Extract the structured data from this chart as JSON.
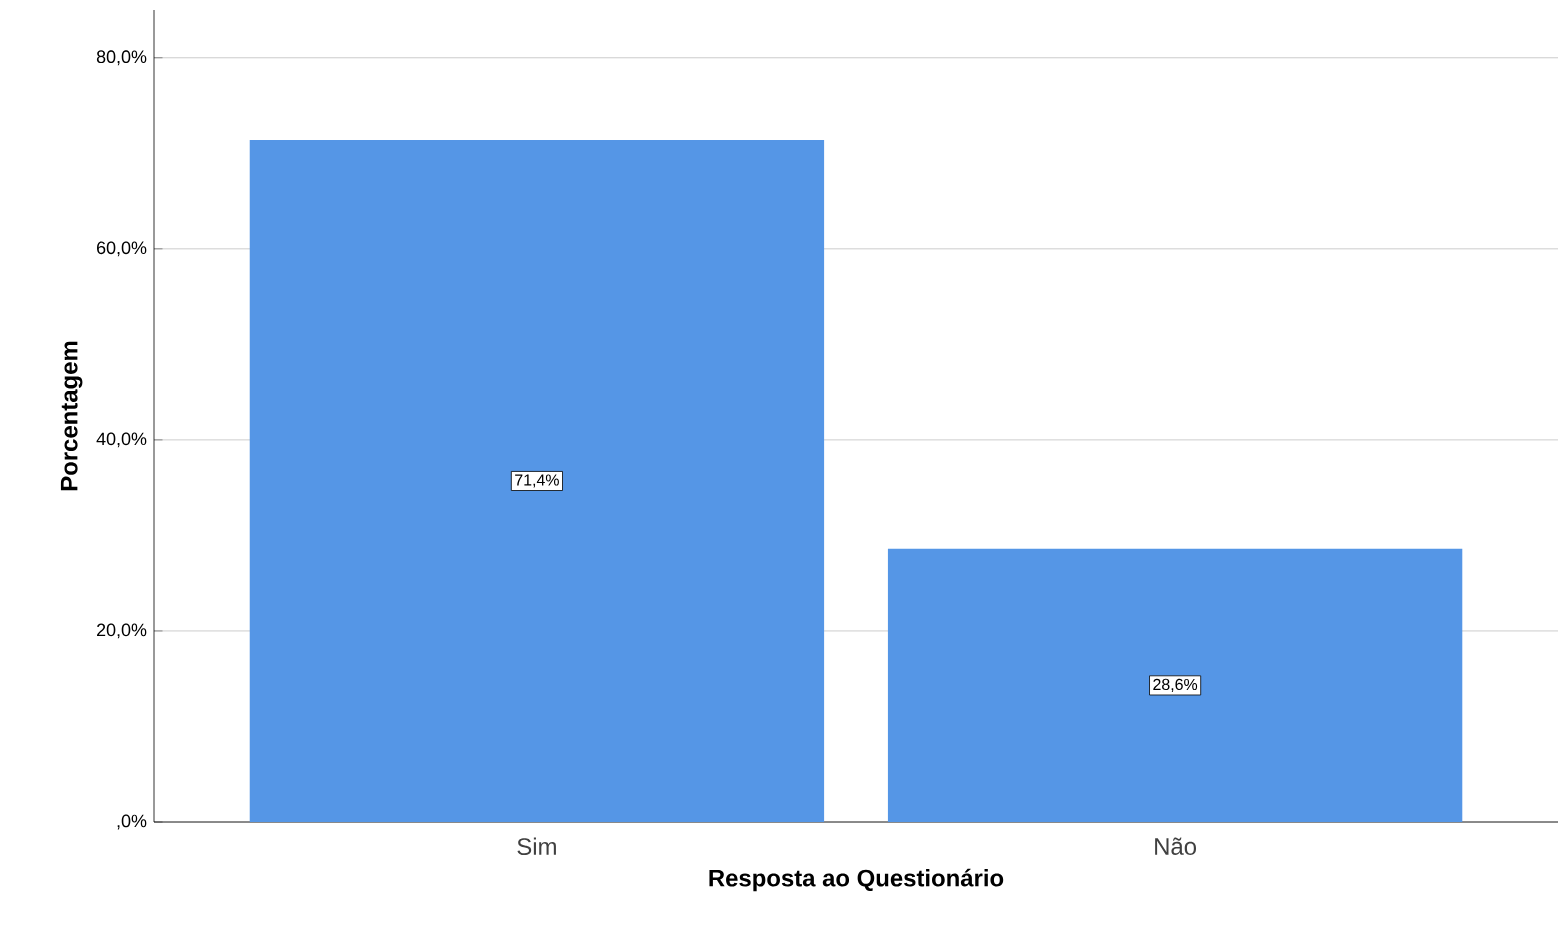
{
  "chart_data": {
    "type": "bar",
    "xlabel": "Resposta ao Questionário",
    "ylabel": "Porcentagem",
    "categories": [
      "Sim",
      "Não"
    ],
    "values": [
      71.4,
      28.6
    ],
    "value_labels": [
      "71,4%",
      "28,6%"
    ],
    "color": "#5596e6",
    "ylim": [
      0,
      85
    ],
    "yticks": [
      {
        "value": 0,
        "label": ",0%"
      },
      {
        "value": 20,
        "label": "20,0%"
      },
      {
        "value": 40,
        "label": "40,0%"
      },
      {
        "value": 60,
        "label": "60,0%"
      },
      {
        "value": 80,
        "label": "80,0%"
      }
    ],
    "grid": "y"
  }
}
